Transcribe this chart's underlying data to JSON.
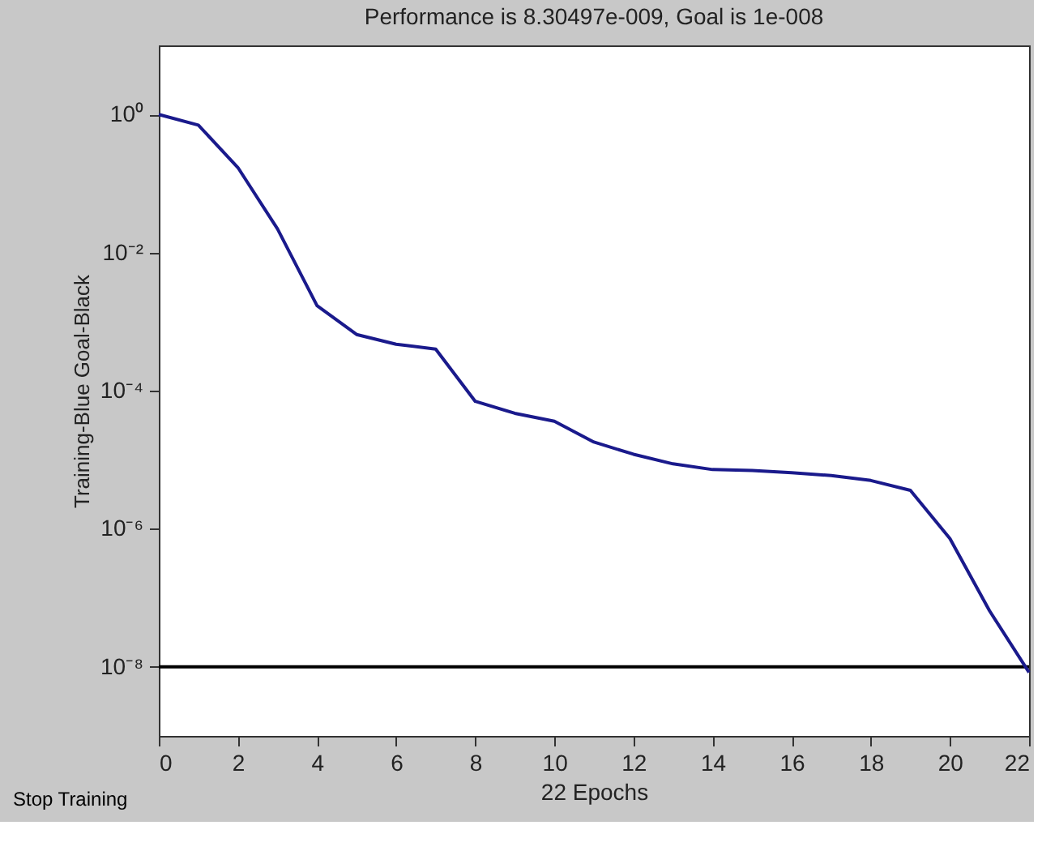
{
  "chart_data": {
    "type": "line",
    "title": "Performance is 8.30497e-009, Goal is 1e-008",
    "xlabel": "22 Epochs",
    "ylabel": "Training-Blue  Goal-Black",
    "x": [
      0,
      1,
      2,
      3,
      4,
      5,
      6,
      7,
      8,
      9,
      10,
      11,
      12,
      13,
      14,
      15,
      16,
      17,
      18,
      19,
      20,
      21,
      22
    ],
    "series": [
      {
        "color": "#1a1a8c",
        "values": [
          1,
          0.7,
          0.17,
          0.022,
          0.0017,
          0.00065,
          0.00047,
          0.0004,
          7e-05,
          4.7e-05,
          3.6e-05,
          1.8e-05,
          1.2e-05,
          8.7e-06,
          7.2e-06,
          7e-06,
          6.5e-06,
          5.9e-06,
          5e-06,
          3.6e-06,
          7.2e-07,
          6.5e-08,
          8.30497e-09
        ]
      }
    ],
    "ref_lines": [
      {
        "axis": "y",
        "value": 1e-08,
        "color": "#000000"
      }
    ],
    "log": "y",
    "xlim": [
      0,
      22
    ],
    "xticks": [
      0,
      2,
      4,
      6,
      8,
      10,
      12,
      14,
      16,
      18,
      20,
      22
    ],
    "ylim": [
      1e-09,
      10
    ],
    "yticks": [
      {
        "value": 1,
        "label": "10⁰"
      },
      {
        "value": 0.01,
        "label": "10⁻²"
      },
      {
        "value": 0.0001,
        "label": "10⁻⁴"
      },
      {
        "value": 1e-06,
        "label": "10⁻⁶"
      },
      {
        "value": 1e-08,
        "label": "10⁻⁸"
      }
    ],
    "grid": false,
    "marker": "none",
    "line_style": "solid",
    "annotations": [
      "Stop Training"
    ]
  }
}
